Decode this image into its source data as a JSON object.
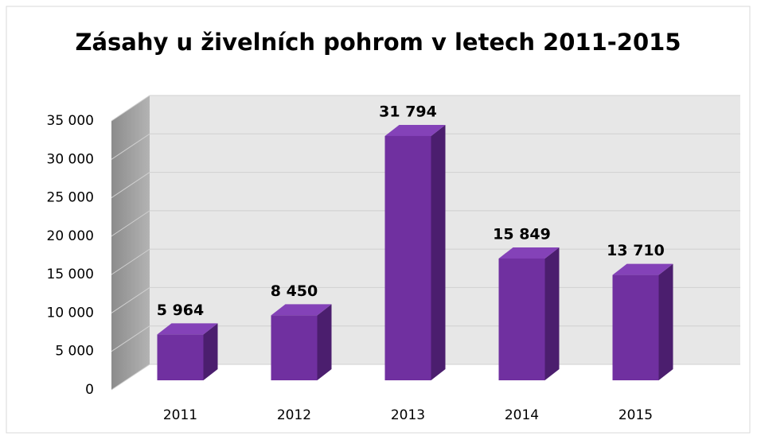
{
  "chart_data": {
    "type": "bar3d",
    "title": "Zásahy u živelních pohrom v letech 2011-2015",
    "categories": [
      "2011",
      "2012",
      "2013",
      "2014",
      "2015"
    ],
    "values": [
      5964,
      8450,
      31794,
      15849,
      13710
    ],
    "value_labels": [
      "5 964",
      "8 450",
      "31 794",
      "15 849",
      "13 710"
    ],
    "color": "#7030a0",
    "ylim": [
      0,
      35000
    ],
    "yticks": [
      {
        "value": 0,
        "label": "0"
      },
      {
        "value": 5000,
        "label": "5 000"
      },
      {
        "value": 10000,
        "label": "10 000"
      },
      {
        "value": 15000,
        "label": "15 000"
      },
      {
        "value": 20000,
        "label": "20 000"
      },
      {
        "value": 25000,
        "label": "25 000"
      },
      {
        "value": 30000,
        "label": "30 000"
      },
      {
        "value": 35000,
        "label": "35 000"
      }
    ],
    "grid": true
  }
}
